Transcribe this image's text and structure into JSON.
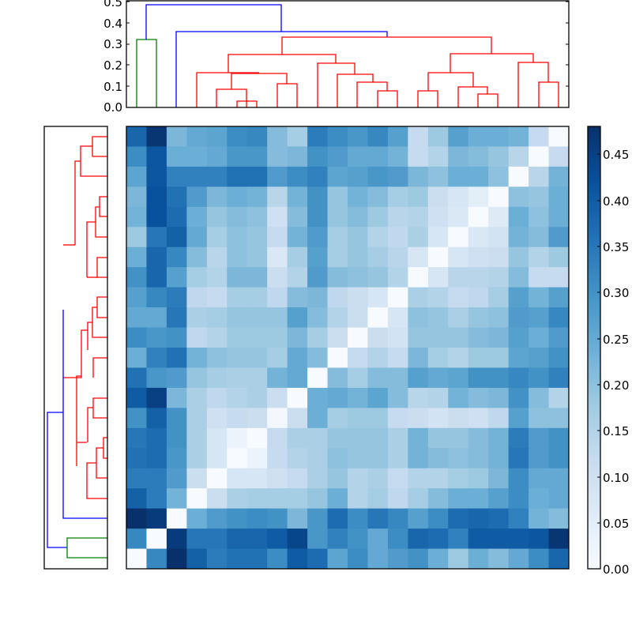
{
  "chart_data": [
    {
      "type": "heatmap",
      "title": "",
      "xlabel": "",
      "ylabel": "",
      "rows": 22,
      "cols": 22,
      "colormap": "Blues",
      "vmin": 0.0,
      "vmax": 0.48,
      "values": [
        [
          0.38,
          0.47,
          0.22,
          0.25,
          0.26,
          0.31,
          0.32,
          0.21,
          0.17,
          0.34,
          0.31,
          0.29,
          0.32,
          0.27,
          0.12,
          0.18,
          0.27,
          0.24,
          0.24,
          0.23,
          0.12,
          0.0
        ],
        [
          0.31,
          0.41,
          0.24,
          0.24,
          0.25,
          0.29,
          0.29,
          0.21,
          0.22,
          0.3,
          0.28,
          0.25,
          0.25,
          0.23,
          0.12,
          0.15,
          0.22,
          0.21,
          0.19,
          0.14,
          0.0,
          0.12
        ],
        [
          0.26,
          0.41,
          0.33,
          0.33,
          0.33,
          0.36,
          0.36,
          0.28,
          0.31,
          0.33,
          0.26,
          0.27,
          0.29,
          0.28,
          0.22,
          0.2,
          0.24,
          0.24,
          0.2,
          0.0,
          0.14,
          0.23
        ],
        [
          0.22,
          0.42,
          0.36,
          0.28,
          0.22,
          0.24,
          0.23,
          0.14,
          0.23,
          0.3,
          0.19,
          0.23,
          0.21,
          0.17,
          0.18,
          0.11,
          0.08,
          0.05,
          0.0,
          0.2,
          0.19,
          0.24
        ],
        [
          0.23,
          0.42,
          0.37,
          0.24,
          0.19,
          0.21,
          0.2,
          0.1,
          0.21,
          0.3,
          0.19,
          0.21,
          0.18,
          0.14,
          0.15,
          0.1,
          0.07,
          0.0,
          0.06,
          0.24,
          0.2,
          0.24
        ],
        [
          0.18,
          0.35,
          0.39,
          0.25,
          0.17,
          0.2,
          0.19,
          0.12,
          0.23,
          0.28,
          0.17,
          0.19,
          0.15,
          0.13,
          0.16,
          0.08,
          0.0,
          0.07,
          0.09,
          0.23,
          0.21,
          0.28
        ],
        [
          0.24,
          0.38,
          0.32,
          0.21,
          0.14,
          0.2,
          0.19,
          0.07,
          0.17,
          0.27,
          0.17,
          0.19,
          0.17,
          0.14,
          0.08,
          0.0,
          0.08,
          0.1,
          0.11,
          0.19,
          0.15,
          0.18
        ],
        [
          0.3,
          0.38,
          0.27,
          0.17,
          0.15,
          0.22,
          0.22,
          0.11,
          0.15,
          0.28,
          0.21,
          0.2,
          0.19,
          0.15,
          0.0,
          0.08,
          0.14,
          0.14,
          0.15,
          0.21,
          0.12,
          0.12
        ],
        [
          0.27,
          0.32,
          0.34,
          0.13,
          0.12,
          0.17,
          0.17,
          0.13,
          0.21,
          0.22,
          0.13,
          0.11,
          0.08,
          0.0,
          0.16,
          0.15,
          0.12,
          0.13,
          0.17,
          0.27,
          0.23,
          0.27
        ],
        [
          0.25,
          0.25,
          0.35,
          0.16,
          0.17,
          0.19,
          0.19,
          0.19,
          0.27,
          0.21,
          0.15,
          0.11,
          0.0,
          0.08,
          0.2,
          0.19,
          0.16,
          0.19,
          0.2,
          0.28,
          0.27,
          0.32
        ],
        [
          0.31,
          0.29,
          0.3,
          0.13,
          0.15,
          0.18,
          0.18,
          0.18,
          0.22,
          0.17,
          0.11,
          0.0,
          0.11,
          0.09,
          0.19,
          0.19,
          0.19,
          0.21,
          0.22,
          0.27,
          0.24,
          0.28
        ],
        [
          0.24,
          0.33,
          0.36,
          0.23,
          0.2,
          0.19,
          0.19,
          0.17,
          0.25,
          0.21,
          0.0,
          0.12,
          0.15,
          0.12,
          0.22,
          0.17,
          0.15,
          0.18,
          0.18,
          0.26,
          0.27,
          0.3
        ],
        [
          0.36,
          0.29,
          0.28,
          0.19,
          0.17,
          0.16,
          0.16,
          0.23,
          0.25,
          0.0,
          0.21,
          0.17,
          0.21,
          0.21,
          0.27,
          0.25,
          0.26,
          0.3,
          0.3,
          0.32,
          0.3,
          0.33
        ],
        [
          0.4,
          0.45,
          0.22,
          0.16,
          0.13,
          0.15,
          0.16,
          0.11,
          0.0,
          0.24,
          0.25,
          0.23,
          0.26,
          0.21,
          0.14,
          0.15,
          0.23,
          0.21,
          0.22,
          0.3,
          0.21,
          0.15
        ],
        [
          0.3,
          0.39,
          0.3,
          0.16,
          0.1,
          0.12,
          0.11,
          0.01,
          0.11,
          0.24,
          0.17,
          0.18,
          0.18,
          0.12,
          0.11,
          0.09,
          0.11,
          0.1,
          0.13,
          0.27,
          0.2,
          0.2
        ],
        [
          0.35,
          0.37,
          0.3,
          0.16,
          0.08,
          0.03,
          0.0,
          0.12,
          0.16,
          0.16,
          0.19,
          0.19,
          0.19,
          0.16,
          0.23,
          0.19,
          0.19,
          0.21,
          0.23,
          0.34,
          0.28,
          0.3
        ],
        [
          0.36,
          0.37,
          0.29,
          0.16,
          0.08,
          0.0,
          0.03,
          0.12,
          0.15,
          0.16,
          0.2,
          0.19,
          0.19,
          0.16,
          0.23,
          0.21,
          0.2,
          0.21,
          0.23,
          0.35,
          0.28,
          0.3
        ],
        [
          0.34,
          0.34,
          0.28,
          0.11,
          0.0,
          0.08,
          0.08,
          0.1,
          0.12,
          0.16,
          0.19,
          0.15,
          0.16,
          0.12,
          0.15,
          0.15,
          0.17,
          0.18,
          0.22,
          0.31,
          0.25,
          0.25
        ],
        [
          0.39,
          0.34,
          0.23,
          0.0,
          0.11,
          0.16,
          0.17,
          0.17,
          0.17,
          0.19,
          0.24,
          0.15,
          0.17,
          0.13,
          0.17,
          0.21,
          0.24,
          0.24,
          0.27,
          0.31,
          0.24,
          0.25
        ],
        [
          0.48,
          0.46,
          0.0,
          0.24,
          0.28,
          0.3,
          0.31,
          0.3,
          0.22,
          0.29,
          0.37,
          0.31,
          0.35,
          0.32,
          0.27,
          0.31,
          0.37,
          0.38,
          0.37,
          0.33,
          0.23,
          0.21
        ],
        [
          0.32,
          0.0,
          0.46,
          0.35,
          0.35,
          0.38,
          0.38,
          0.4,
          0.44,
          0.29,
          0.33,
          0.3,
          0.25,
          0.31,
          0.38,
          0.37,
          0.33,
          0.4,
          0.4,
          0.4,
          0.41,
          0.47
        ],
        [
          0.0,
          0.32,
          0.48,
          0.39,
          0.34,
          0.36,
          0.36,
          0.31,
          0.4,
          0.37,
          0.26,
          0.31,
          0.25,
          0.28,
          0.3,
          0.24,
          0.18,
          0.24,
          0.21,
          0.25,
          0.31,
          0.38
        ]
      ],
      "colorbar": {
        "ticks": [
          "0.00",
          "0.05",
          "0.10",
          "0.15",
          "0.20",
          "0.25",
          "0.30",
          "0.35",
          "0.40",
          "0.45"
        ],
        "range": [
          0.0,
          0.48
        ]
      }
    },
    {
      "type": "dendrogram",
      "orientation": "top",
      "yticks": [
        "0.0",
        "0.1",
        "0.2",
        "0.3",
        "0.4",
        "0.5"
      ],
      "ylim": [
        0.0,
        0.52
      ],
      "link_colors": {
        "cluster_a": "#008000",
        "cluster_b": "#ff0000",
        "root": "#0000ff"
      },
      "merge_heights_visible": [
        0.48,
        0.36,
        0.33,
        0.32,
        0.25,
        0.21,
        0.165,
        0.16,
        0.12,
        0.115,
        0.11,
        0.09,
        0.085,
        0.08,
        0.07,
        0.065,
        0.06,
        0.03
      ]
    },
    {
      "type": "dendrogram",
      "orientation": "left",
      "link_colors": {
        "cluster_a": "#008000",
        "cluster_b": "#ff0000",
        "root": "#0000ff"
      }
    }
  ],
  "top_axis": {
    "tick_labels": [
      "0.0",
      "0.1",
      "0.2",
      "0.3",
      "0.4",
      "0.5"
    ]
  },
  "colorbar_axis": {
    "tick_labels": [
      "0.00",
      "0.05",
      "0.10",
      "0.15",
      "0.20",
      "0.25",
      "0.30",
      "0.35",
      "0.40",
      "0.45"
    ]
  }
}
